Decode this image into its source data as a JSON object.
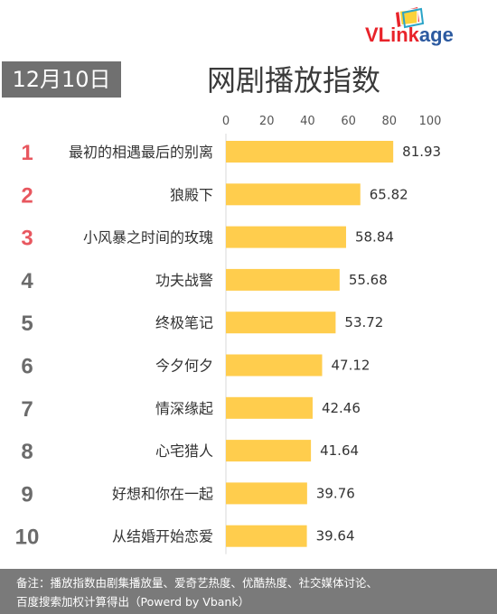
{
  "header": {
    "date_badge": "12月10日",
    "title": "网剧播放指数",
    "logo_text_vl": "VLink",
    "logo_text_age": "age"
  },
  "colors": {
    "bar": "#ffcd4d",
    "rank_top": "#e8575f",
    "rank_rest": "#6b6b6b",
    "badge_bg": "#707070",
    "footer_bg": "#7a7a7a"
  },
  "chart_data": {
    "type": "bar",
    "orientation": "horizontal",
    "title": "网剧播放指数",
    "xlim": [
      0,
      100
    ],
    "xticks": [
      0,
      20,
      40,
      60,
      80,
      100
    ],
    "ranks": [
      "1",
      "2",
      "3",
      "4",
      "5",
      "6",
      "7",
      "8",
      "9",
      "10"
    ],
    "categories": [
      "最初的相遇最后的别离",
      "狼殿下",
      "小风暴之时间的玫瑰",
      "功夫战警",
      "终极笔记",
      "今夕何夕",
      "情深缘起",
      "心宅猎人",
      "好想和你在一起",
      "从结婚开始恋爱"
    ],
    "values": [
      81.93,
      65.82,
      58.84,
      55.68,
      53.72,
      47.12,
      42.46,
      41.64,
      39.76,
      39.64
    ],
    "value_labels": [
      "81.93",
      "65.82",
      "58.84",
      "55.68",
      "53.72",
      "47.12",
      "42.46",
      "41.64",
      "39.76",
      "39.64"
    ]
  },
  "footer": {
    "line1": "备注：播放指数由剧集播放量、爱奇艺热度、优酷热度、社交媒体讨论、",
    "line2": "百度搜索加权计算得出（Powerd by Vbank）"
  }
}
